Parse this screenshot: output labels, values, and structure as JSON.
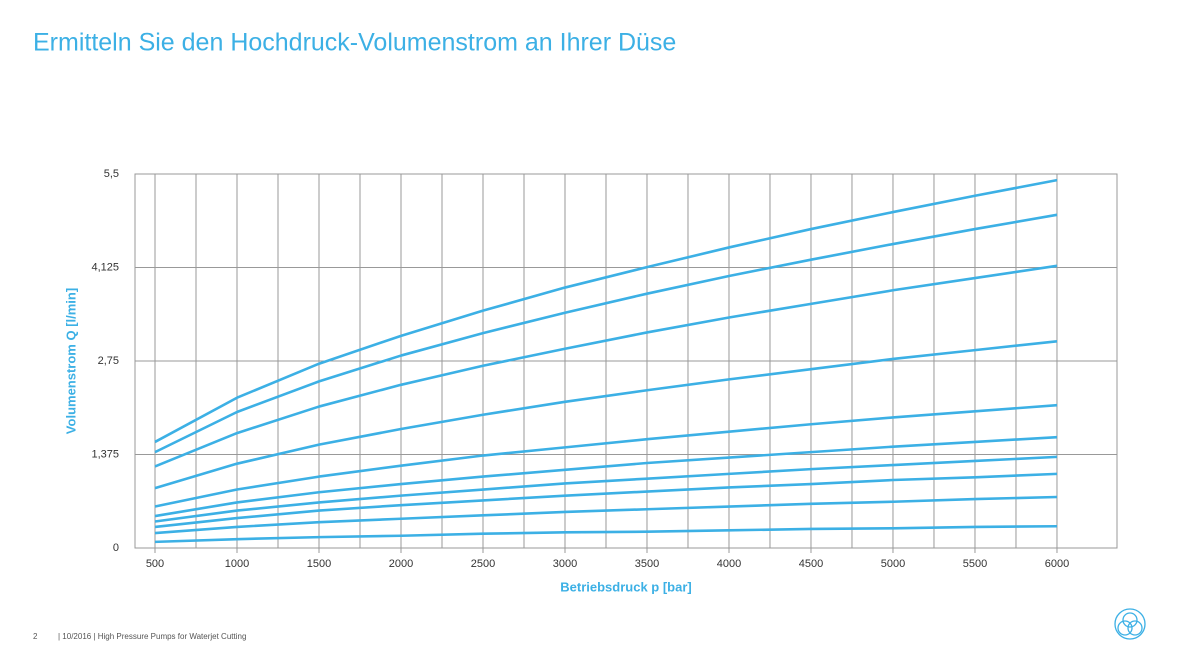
{
  "header": {
    "title": "Ermitteln Sie den Hochdruck-Volumenstrom an Ihrer Düse"
  },
  "chart_data": {
    "type": "line",
    "xlabel": "Betriebsdruck p [bar]",
    "ylabel": "Volumenstrom Q [l/min]",
    "x": [
      500,
      1000,
      1500,
      2000,
      2500,
      3000,
      3500,
      4000,
      4500,
      5000,
      5500,
      6000
    ],
    "xlim": [
      378,
      6366
    ],
    "xticks": [
      500,
      1000,
      1500,
      2000,
      2500,
      3000,
      3500,
      4000,
      4500,
      5000,
      5500,
      6000
    ],
    "ylim": [
      0,
      5.5
    ],
    "yticks": [
      0,
      {
        "value": 1.375,
        "label": "1,375"
      },
      {
        "value": 2.75,
        "label": "2,75"
      },
      {
        "value": 4.125,
        "label": "4,125"
      },
      {
        "value": 5.5,
        "label": "5,5"
      }
    ],
    "grid": true,
    "series": [
      {
        "color": "#3cb0e5",
        "values": [
          1.56,
          2.21,
          2.71,
          3.12,
          3.49,
          3.83,
          4.13,
          4.42,
          4.69,
          4.94,
          5.18,
          5.41
        ]
      },
      {
        "color": "#3cb0e5",
        "values": [
          1.41,
          2.0,
          2.45,
          2.83,
          3.16,
          3.46,
          3.74,
          4.0,
          4.24,
          4.47,
          4.69,
          4.9
        ]
      },
      {
        "color": "#3cb0e5",
        "values": [
          1.2,
          1.69,
          2.08,
          2.4,
          2.68,
          2.93,
          3.17,
          3.39,
          3.59,
          3.79,
          3.97,
          4.15
        ]
      },
      {
        "color": "#3cb0e5",
        "values": [
          0.88,
          1.24,
          1.52,
          1.75,
          1.96,
          2.15,
          2.32,
          2.48,
          2.63,
          2.78,
          2.91,
          3.04
        ]
      },
      {
        "color": "#3cb0e5",
        "values": [
          0.61,
          0.86,
          1.05,
          1.21,
          1.36,
          1.48,
          1.6,
          1.71,
          1.82,
          1.92,
          2.01,
          2.1
        ]
      },
      {
        "color": "#3cb0e5",
        "values": [
          0.47,
          0.67,
          0.82,
          0.94,
          1.05,
          1.15,
          1.25,
          1.33,
          1.41,
          1.49,
          1.56,
          1.63
        ]
      },
      {
        "color": "#3cb0e5",
        "values": [
          0.39,
          0.55,
          0.67,
          0.77,
          0.86,
          0.95,
          1.02,
          1.09,
          1.16,
          1.22,
          1.28,
          1.34
        ]
      },
      {
        "color": "#3cb0e5",
        "values": [
          0.31,
          0.44,
          0.55,
          0.63,
          0.7,
          0.77,
          0.83,
          0.89,
          0.94,
          1.0,
          1.04,
          1.09
        ]
      },
      {
        "color": "#3cb0e5",
        "values": [
          0.22,
          0.31,
          0.38,
          0.43,
          0.48,
          0.53,
          0.57,
          0.61,
          0.65,
          0.68,
          0.72,
          0.75
        ]
      },
      {
        "color": "#3cb0e5",
        "values": [
          0.09,
          0.13,
          0.16,
          0.18,
          0.21,
          0.23,
          0.24,
          0.26,
          0.28,
          0.29,
          0.31,
          0.32
        ]
      }
    ]
  },
  "footer": {
    "page": "2",
    "text": "| 10/2016 |  High Pressure Pumps for Waterjet Cutting"
  }
}
